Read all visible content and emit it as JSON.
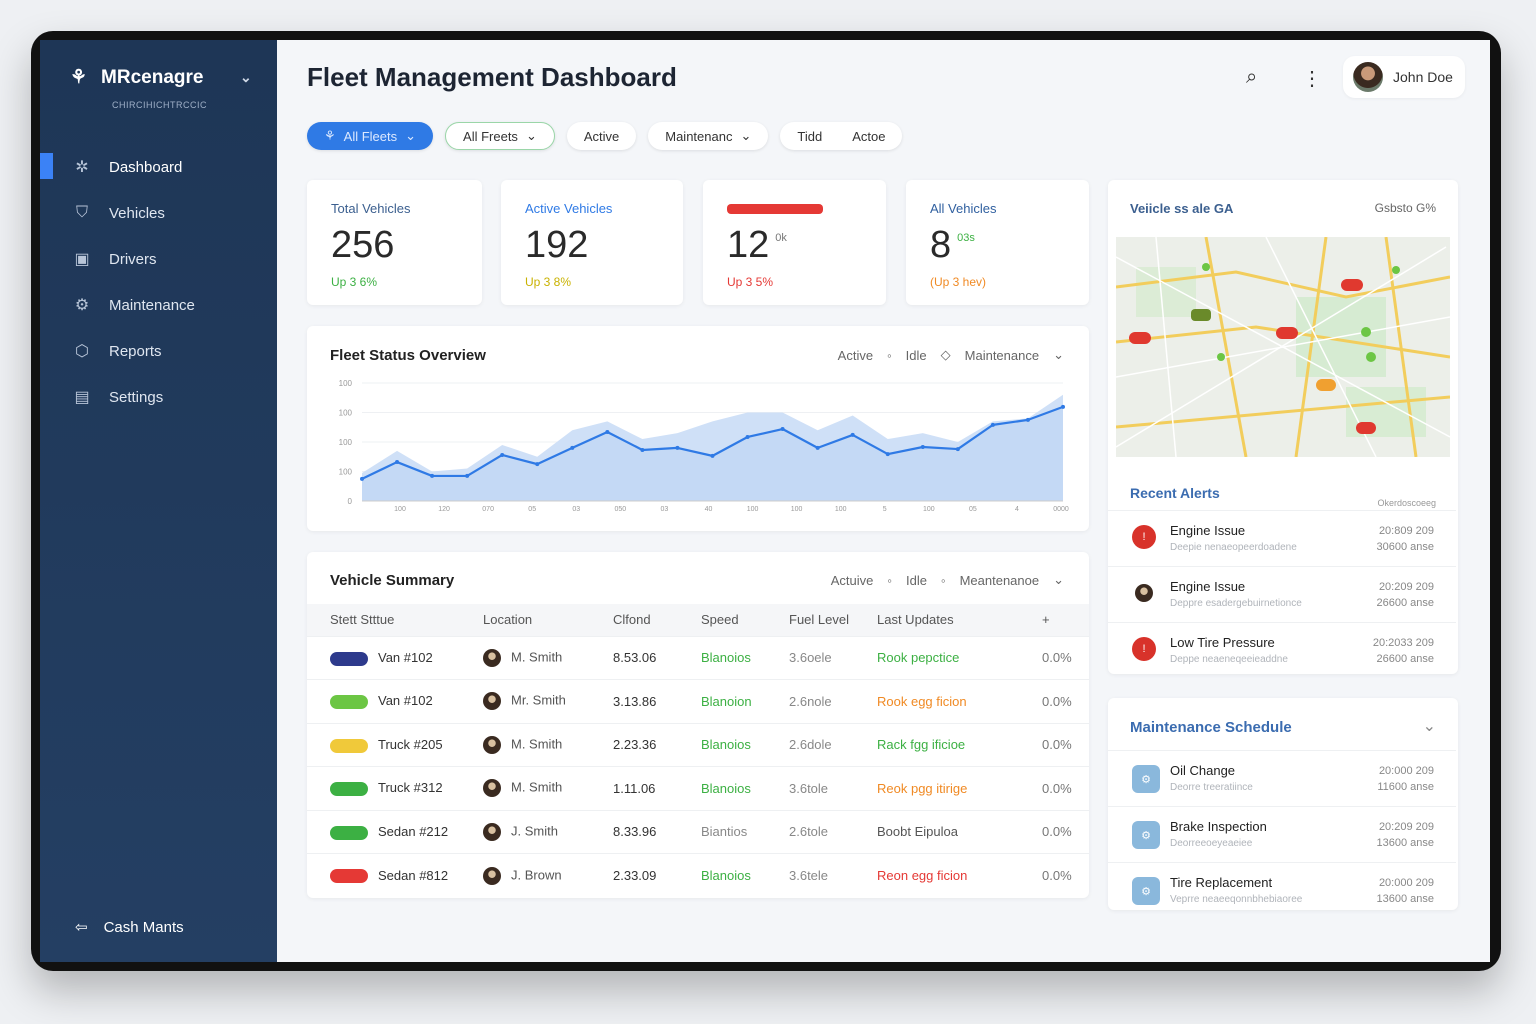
{
  "app": {
    "brand": "MRcenagre",
    "brand_sub": "CHIRCIHICHTRCCIC",
    "title": "Fleet Management Dashboard",
    "user": "John Doe"
  },
  "sidebar": {
    "items": [
      {
        "label": "Dashboard",
        "icon": "dashboard-icon",
        "active": true
      },
      {
        "label": "Vehicles",
        "icon": "vehicle-icon"
      },
      {
        "label": "Drivers",
        "icon": "driver-icon"
      },
      {
        "label": "Maintenance",
        "icon": "wrench-icon"
      },
      {
        "label": "Reports",
        "icon": "report-icon"
      },
      {
        "label": "Settings",
        "icon": "gear-icon"
      }
    ],
    "footer": "Cash Mants"
  },
  "filters": [
    {
      "label": "All Fleets",
      "style": "primary"
    },
    {
      "label": "All Freets",
      "style": "green"
    },
    {
      "label": "Active"
    },
    {
      "label": "Maintenanc"
    },
    {
      "label": "Tidd"
    },
    {
      "label": "Actoe"
    }
  ],
  "stats": [
    {
      "label": "Total Vehicles",
      "value": "256",
      "change": "Up 3 6%",
      "change_color": "#3cb043"
    },
    {
      "label": "Active Vehicles",
      "value": "192",
      "change": "Up 3 8%",
      "change_color": "#d4b800"
    },
    {
      "label": "",
      "value": "12",
      "sup": "0k",
      "change": "Up 3 5%",
      "change_color": "#e53935"
    },
    {
      "label": "All Vehicles",
      "value": "8",
      "sup": "03s",
      "change": "(Up 3 hev)",
      "change_color": "#f08a24"
    }
  ],
  "status_chart": {
    "title": "Fleet Status Overview",
    "legend": [
      "Active",
      "Idle",
      "Maintenance"
    ]
  },
  "chart_data": {
    "type": "area",
    "title": "Fleet Status Overview",
    "series": [
      {
        "name": "Active",
        "values": [
          75,
          132,
          85,
          85,
          156,
          125,
          180,
          234,
          173,
          180,
          153,
          217,
          244,
          180,
          224,
          159,
          183,
          176,
          258,
          275,
          319
        ]
      },
      {
        "name": "Idle",
        "values": [
          95,
          170,
          100,
          110,
          190,
          150,
          240,
          270,
          210,
          230,
          270,
          300,
          300,
          240,
          290,
          210,
          230,
          200,
          270,
          280,
          360
        ]
      }
    ],
    "y_tick_labels": [
      "100",
      "100",
      "100",
      "100",
      "0"
    ],
    "x_tick_labels": [
      "100",
      "120",
      "070",
      "05",
      "03",
      "050",
      "03",
      "40",
      "100",
      "100",
      "100",
      "5",
      "100",
      "05",
      "4",
      "0000"
    ],
    "ylim": [
      0,
      400
    ],
    "grid": true
  },
  "vehicle_summary": {
    "title": "Vehicle Summary",
    "legend": [
      "Actuive",
      "Idle",
      "Meantenanoe"
    ],
    "columns": [
      "Stett Stttue",
      "Location",
      "Clfond",
      "Speed",
      "Fuel Level",
      "Last Updates"
    ],
    "rows": [
      {
        "badge": "#2d3a8c",
        "name": "Van #102",
        "driver": "M. Smith",
        "c": "8.53.06",
        "speed": "Blanoios",
        "fuel": "3.6oele",
        "status": "Rook pepctice",
        "status_color": "#3cb043",
        "pct": "0.0%"
      },
      {
        "badge": "#6cc644",
        "name": "Van #102",
        "driver": "Mr. Smith",
        "c": "3.13.86",
        "speed": "Blanoion",
        "fuel": "2.6nole",
        "status": "Rook egg ficion",
        "status_color": "#f08a24",
        "pct": "0.0%"
      },
      {
        "badge": "#f0c93a",
        "name": "Truck #205",
        "driver": "M. Smith",
        "c": "2.23.36",
        "speed": "Blanoios",
        "fuel": "2.6dole",
        "status": "Rack fgg ificioe",
        "status_color": "#3cb043",
        "pct": "0.0%"
      },
      {
        "badge": "#3cb043",
        "name": "Truck #312",
        "driver": "M. Smith",
        "c": "1.11.06",
        "speed": "Blanoios",
        "fuel": "3.6tole",
        "status": "Reok pgg itirige",
        "status_color": "#f08a24",
        "pct": "0.0%"
      },
      {
        "badge": "#3cb043",
        "name": "Sedan #212",
        "driver": "J. Smith",
        "c": "8.33.96",
        "speed": "Biantios",
        "fuel": "2.6tole",
        "status": "Boobt Eipuloa",
        "status_color": "#555555",
        "pct": "0.0%",
        "speed_color": "#888888"
      },
      {
        "badge": "#e53935",
        "name": "Sedan #812",
        "driver": "J. Brown",
        "c": "2.33.09",
        "speed": "Blanoios",
        "fuel": "3.6tele",
        "status": "Reon egg ficion",
        "status_color": "#e53935",
        "pct": "0.0%"
      }
    ]
  },
  "map": {
    "title": "Veiicle ss ale GA",
    "status": "Gsbsto G%"
  },
  "alerts": {
    "title": "Recent Alerts",
    "subtitle": "Okerdoscoeeg",
    "items": [
      {
        "title": "Engine Issue",
        "sub": "Deepie nenaeopeerdoadene",
        "date": "20:809 209",
        "time": "30600 anse"
      },
      {
        "title": "Engine Issue",
        "sub": "Deppre esadergebuirnetionce",
        "date": "20:209 209",
        "time": "26600 anse"
      },
      {
        "title": "Low Tire Pressure",
        "sub": "Deppe neaeneqeeieaddne",
        "date": "20:2033 209",
        "time": "26600 anse"
      }
    ]
  },
  "maintenance": {
    "title": "Maintenance Schedule",
    "items": [
      {
        "title": "Oil Change",
        "sub": "Deorre treeratiince",
        "date": "20:000 209",
        "time": "11600 anse"
      },
      {
        "title": "Brake Inspection",
        "sub": "Deorreeoeyeaeiee",
        "date": "20:209 209",
        "time": "13600 anse"
      },
      {
        "title": "Tire Replacement",
        "sub": "Veprre neaeeqonnbhebiaoree",
        "date": "20:000 209",
        "time": "13600 anse"
      }
    ]
  }
}
